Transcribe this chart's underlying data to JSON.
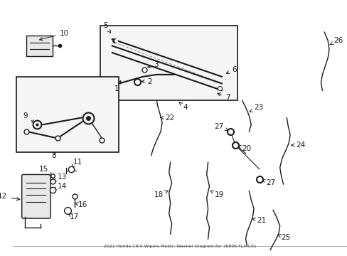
{
  "title": "2021 Honda CR-V Wipers Motor, Washer Diagram for 76806-TLA-C01",
  "bg_color": "#ffffff",
  "line_color": "#1a1a1a",
  "box_fill": "#f0f0f0",
  "label_fontsize": 7.5,
  "figsize": [
    4.89,
    3.6
  ],
  "dpi": 100
}
